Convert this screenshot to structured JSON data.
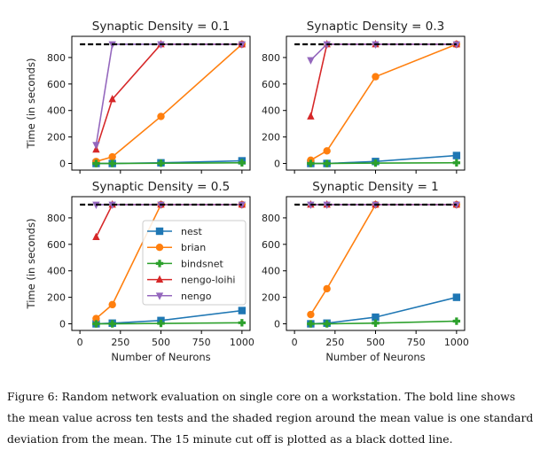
{
  "chart_data": [
    {
      "type": "line",
      "title": "Synaptic Density = 0.1",
      "xlabel": "",
      "ylabel": "Time (in seconds)",
      "x": [
        100,
        200,
        500,
        1000
      ],
      "xlim": [
        -50,
        1050
      ],
      "ylim": [
        -50,
        960
      ],
      "xticks": [
        0,
        250,
        500,
        750,
        1000
      ],
      "xtick_labels_visible": false,
      "yticks": [
        0,
        200,
        400,
        600,
        800
      ],
      "ytick_labels": [
        "0",
        "200",
        "400",
        "600",
        "800"
      ],
      "cutoff": 900,
      "series": [
        {
          "name": "nest",
          "values": [
            0,
            0,
            5,
            20
          ]
        },
        {
          "name": "brian",
          "values": [
            15,
            50,
            355,
            900
          ]
        },
        {
          "name": "bindsnet",
          "values": [
            0,
            0,
            2,
            5
          ]
        },
        {
          "name": "nengo-loihi",
          "values": [
            105,
            485,
            900,
            900
          ]
        },
        {
          "name": "nengo",
          "values": [
            140,
            900,
            900,
            900
          ]
        }
      ]
    },
    {
      "type": "line",
      "title": "Synaptic Density = 0.3",
      "xlabel": "",
      "ylabel": "",
      "x": [
        100,
        200,
        500,
        1000
      ],
      "xlim": [
        -50,
        1050
      ],
      "ylim": [
        -50,
        960
      ],
      "xticks": [
        0,
        250,
        500,
        750,
        1000
      ],
      "xtick_labels_visible": false,
      "yticks": [
        0,
        200,
        400,
        600,
        800
      ],
      "ytick_labels": [
        "0",
        "200",
        "400",
        "600",
        "800"
      ],
      "cutoff": 900,
      "series": [
        {
          "name": "nest",
          "values": [
            0,
            0,
            15,
            60
          ]
        },
        {
          "name": "brian",
          "values": [
            25,
            95,
            655,
            900
          ]
        },
        {
          "name": "bindsnet",
          "values": [
            0,
            0,
            3,
            5
          ]
        },
        {
          "name": "nengo-loihi",
          "values": [
            355,
            900,
            900,
            900
          ]
        },
        {
          "name": "nengo",
          "values": [
            780,
            900,
            900,
            900
          ]
        }
      ]
    },
    {
      "type": "line",
      "title": "Synaptic Density = 0.5",
      "xlabel": "Number of Neurons",
      "ylabel": "Time (in seconds)",
      "x": [
        100,
        200,
        500,
        1000
      ],
      "xlim": [
        -50,
        1050
      ],
      "ylim": [
        -50,
        960
      ],
      "xticks": [
        0,
        250,
        500,
        750,
        1000
      ],
      "xtick_labels_visible": true,
      "xtick_labels": [
        "0",
        "250",
        "500",
        "750",
        "1000"
      ],
      "yticks": [
        0,
        200,
        400,
        600,
        800
      ],
      "ytick_labels": [
        "0",
        "200",
        "400",
        "600",
        "800"
      ],
      "cutoff": 900,
      "legend": "center-right",
      "series": [
        {
          "name": "nest",
          "values": [
            0,
            5,
            25,
            100
          ]
        },
        {
          "name": "brian",
          "values": [
            40,
            145,
            900,
            900
          ]
        },
        {
          "name": "bindsnet",
          "values": [
            0,
            0,
            3,
            8
          ]
        },
        {
          "name": "nengo-loihi",
          "values": [
            655,
            900,
            900,
            900
          ]
        },
        {
          "name": "nengo",
          "values": [
            900,
            900,
            900,
            900
          ]
        }
      ]
    },
    {
      "type": "line",
      "title": "Synaptic Density = 1",
      "xlabel": "Number of Neurons",
      "ylabel": "",
      "x": [
        100,
        200,
        500,
        1000
      ],
      "xlim": [
        -50,
        1050
      ],
      "ylim": [
        -50,
        960
      ],
      "xticks": [
        0,
        250,
        500,
        750,
        1000
      ],
      "xtick_labels_visible": true,
      "xtick_labels": [
        "0",
        "250",
        "500",
        "750",
        "1000"
      ],
      "yticks": [
        0,
        200,
        400,
        600,
        800
      ],
      "ytick_labels": [
        "0",
        "200",
        "400",
        "600",
        "800"
      ],
      "cutoff": 900,
      "series": [
        {
          "name": "nest",
          "values": [
            0,
            5,
            50,
            200
          ]
        },
        {
          "name": "brian",
          "values": [
            70,
            265,
            900,
            900
          ]
        },
        {
          "name": "bindsnet",
          "values": [
            0,
            0,
            5,
            20
          ]
        },
        {
          "name": "nengo-loihi",
          "values": [
            900,
            900,
            900,
            900
          ]
        },
        {
          "name": "nengo",
          "values": [
            900,
            900,
            900,
            900
          ]
        }
      ]
    }
  ],
  "series_styles": {
    "nest": {
      "color": "#1f77b4",
      "marker": "square"
    },
    "brian": {
      "color": "#ff7f0e",
      "marker": "circle"
    },
    "bindsnet": {
      "color": "#2ca02c",
      "marker": "plus"
    },
    "nengo-loihi": {
      "color": "#d62728",
      "marker": "triangle-up"
    },
    "nengo": {
      "color": "#9467bd",
      "marker": "triangle-down"
    }
  },
  "legend_entries": [
    "nest",
    "brian",
    "bindsnet",
    "nengo-loihi",
    "nengo"
  ],
  "cutoff_color": "#000000",
  "caption": {
    "lines": [
      "Figure 6: Random network evaluation on single core on a workstation. The bold line shows",
      "the mean value across ten tests and the shaded region around the mean value is one standard",
      "deviation from the mean. The 15 minute cut off is plotted as a black dotted line."
    ]
  }
}
